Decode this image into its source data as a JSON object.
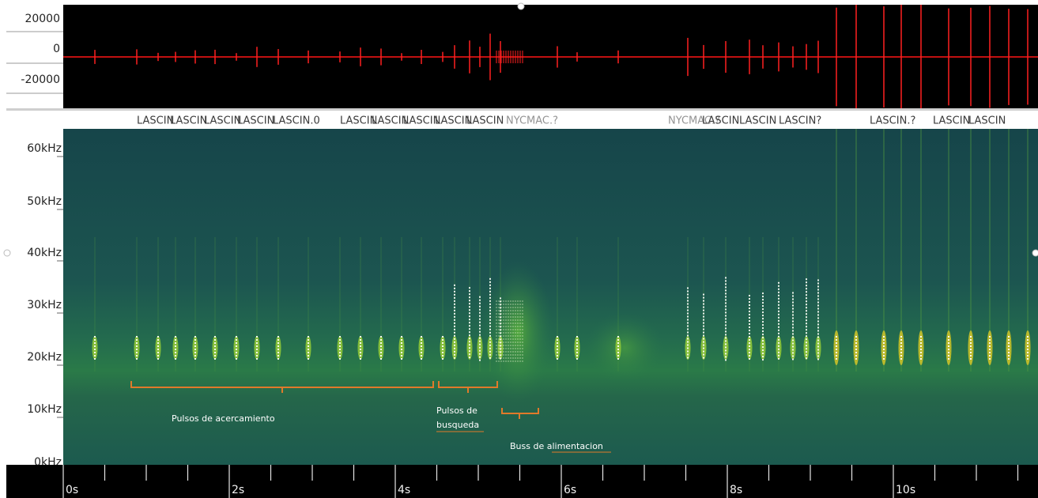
{
  "waveform": {
    "y_labels": [
      "20000",
      "0",
      "-20000"
    ]
  },
  "spectrogram": {
    "species_labels": [
      "LASCIN",
      "LASCIN",
      "LASCIN",
      "LASCIN",
      "LASCIN.0",
      "LASCIN",
      "LASCIN",
      "LASCIN",
      "LASCIN",
      "LASCIN",
      "NYCMAC.?",
      "NYCMAC.?",
      "LASCIN",
      "LASCIN",
      "LASCIN?",
      "LASCIN.?",
      "LASCIN",
      "LASCIN"
    ],
    "y_labels": [
      "60kHz",
      "50kHz",
      "40kHz",
      "30kHz",
      "20kHz",
      "10kHz",
      "0kHz"
    ],
    "x_labels": [
      "0s",
      "2s",
      "4s",
      "6s",
      "8s",
      "10s"
    ]
  },
  "annotations": {
    "approach": "Pulsos de acercamiento",
    "search": [
      "Pulsos de",
      "busqueda"
    ],
    "feeding_buzz": "Buss de alimentacion"
  }
}
